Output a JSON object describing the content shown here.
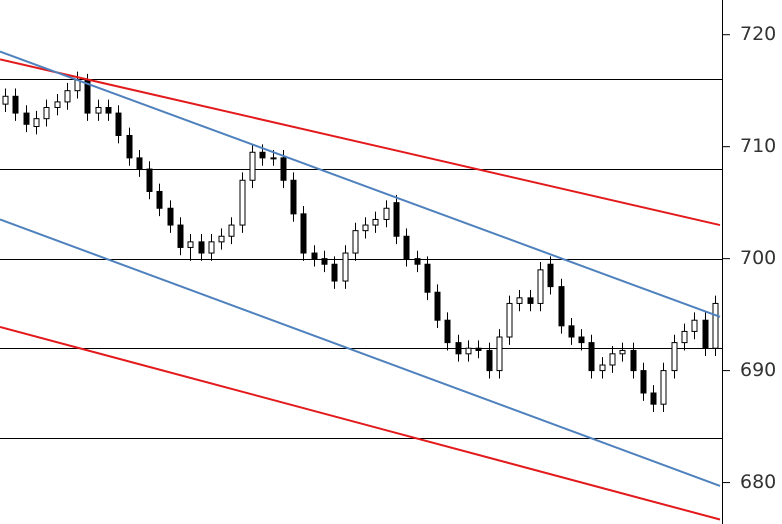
{
  "chart_data": {
    "type": "candlestick",
    "ylim": [
      676.3,
      723.1
    ],
    "yticks": [
      680,
      690,
      700,
      710,
      720
    ],
    "up_color": "#ffffff",
    "down_color": "#000000",
    "levels": [
      716,
      708,
      700,
      692,
      684
    ],
    "trendlines": [
      {
        "color": "#e31a1c",
        "values": [
          717.8,
          703.0
        ]
      },
      {
        "color": "#e31a1c",
        "values": [
          693.9,
          676.7
        ]
      },
      {
        "color": "#4f81bd",
        "values": [
          718.5,
          694.8
        ]
      },
      {
        "color": "#4f81bd",
        "values": [
          703.5,
          679.7
        ]
      }
    ],
    "open": [
      713.8,
      714.5,
      713,
      711.8,
      712.5,
      713.5,
      714,
      715,
      716,
      713,
      713.5,
      713,
      711,
      709,
      708,
      706,
      704.5,
      703,
      701,
      701.5,
      700.5,
      701.5,
      702,
      703,
      707,
      709.5,
      709,
      709,
      707,
      704,
      700.5,
      700,
      699.5,
      698,
      700.5,
      702.5,
      703,
      703.5,
      705,
      702,
      700,
      699.5,
      697,
      694.5,
      692.5,
      691.5,
      692,
      691.8,
      690,
      693,
      696,
      696.5,
      696,
      699.5,
      697.5,
      694,
      693,
      692.5,
      690,
      690.5,
      691.5,
      691.8,
      690,
      688,
      687,
      690,
      692.5,
      693.5,
      694.5,
      692
    ],
    "high": [
      715.2,
      715.2,
      713.7,
      713.2,
      714.2,
      714.7,
      715.7,
      716.7,
      716.5,
      714.2,
      714.2,
      713.7,
      711.7,
      709.7,
      708.7,
      706.7,
      705.2,
      703.7,
      702.2,
      702.2,
      702.2,
      702.7,
      703.7,
      707.7,
      710.2,
      710.2,
      709.7,
      709.7,
      707.7,
      704.7,
      701.2,
      700.7,
      700.2,
      701.2,
      703.2,
      703.7,
      704.2,
      705.2,
      705.7,
      702.7,
      700.7,
      700.2,
      697.7,
      695.2,
      693.2,
      692.7,
      692.7,
      692.5,
      693.7,
      696.7,
      697.2,
      697.2,
      699.7,
      700.2,
      698.2,
      694.7,
      693.7,
      693.2,
      691.2,
      692.2,
      692.5,
      692.5,
      690.7,
      688.7,
      690.7,
      693.2,
      694.2,
      695.2,
      695.2,
      696.7
    ],
    "low": [
      713.1,
      712.3,
      711.3,
      711.1,
      711.8,
      712.8,
      713.3,
      714.3,
      712.3,
      712.3,
      712.3,
      710.3,
      708.3,
      707.3,
      705.3,
      703.8,
      702.3,
      700.3,
      699.8,
      699.8,
      699.8,
      700.8,
      701.3,
      702.3,
      706.3,
      708.3,
      708.3,
      706.3,
      703.3,
      699.8,
      699.3,
      698.8,
      697.3,
      697.3,
      699.8,
      701.8,
      702.3,
      702.8,
      701.3,
      699.3,
      698.8,
      696.3,
      693.8,
      691.8,
      690.8,
      690.8,
      691.1,
      689.3,
      689.3,
      692.3,
      695.3,
      695.3,
      695.3,
      696.8,
      693.3,
      692.3,
      691.8,
      689.3,
      689.3,
      689.8,
      690.8,
      689.3,
      687.3,
      686.3,
      686.3,
      689.3,
      691.8,
      692.8,
      691.3,
      691.3
    ],
    "close": [
      714.5,
      713,
      712,
      712.5,
      713.5,
      714,
      715,
      716,
      713,
      713.5,
      713,
      711,
      709,
      708,
      706,
      704.5,
      703,
      701,
      701.5,
      700.5,
      701.5,
      702,
      703,
      707,
      709.5,
      709,
      709,
      707,
      704,
      700.5,
      700,
      699.5,
      698,
      700.5,
      702.5,
      703,
      703.5,
      704.5,
      702,
      700,
      699.5,
      697,
      694.5,
      692.5,
      691.5,
      692,
      691.8,
      690,
      693,
      696,
      696.5,
      696,
      699,
      697.5,
      694,
      693,
      692.5,
      690,
      690.5,
      691.5,
      691.8,
      690,
      688,
      687,
      690,
      692.5,
      693.5,
      694.5,
      692,
      696
    ]
  }
}
